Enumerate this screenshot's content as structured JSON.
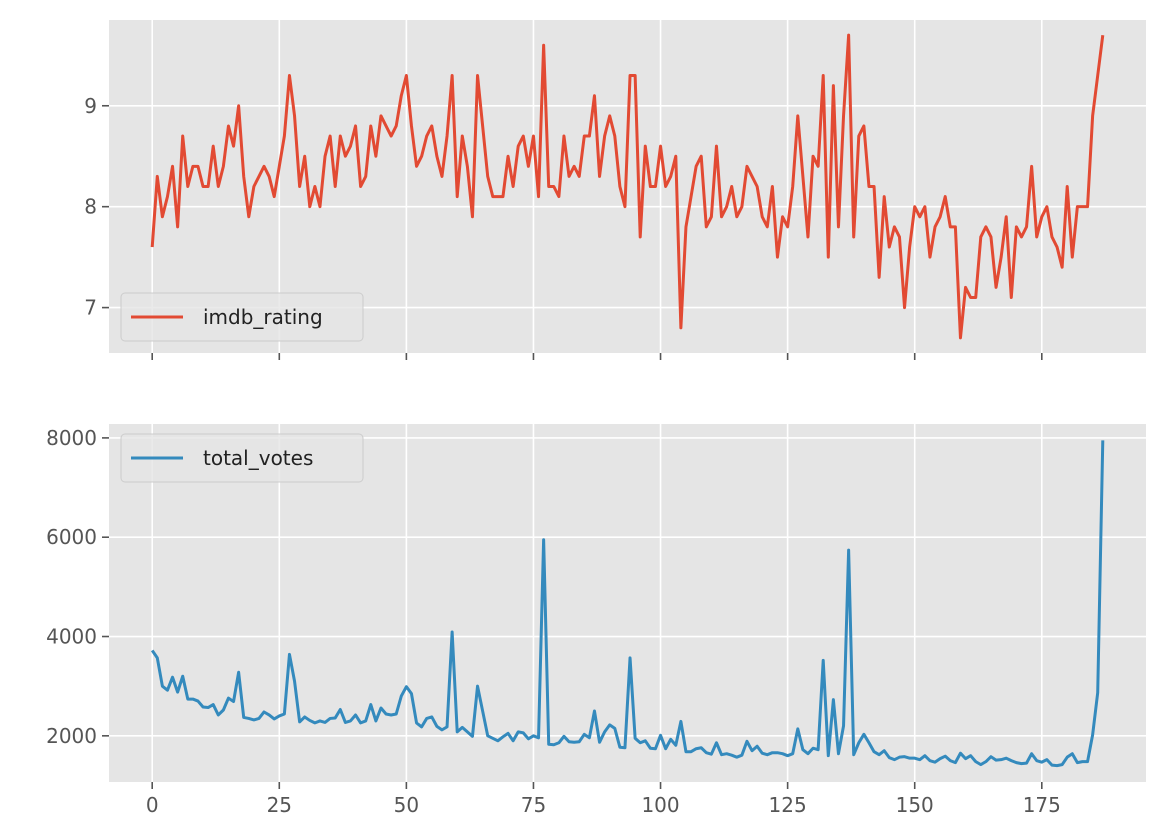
{
  "chart_data": [
    {
      "type": "line",
      "title": "",
      "xlabel": "",
      "ylabel": "",
      "xlim": [
        -8.5,
        195.5
      ],
      "ylim": [
        6.55,
        9.85
      ],
      "x_ticks": [
        0,
        25,
        50,
        75,
        100,
        125,
        150,
        175
      ],
      "x_tick_labels_visible": false,
      "y_ticks": [
        7,
        8,
        9
      ],
      "y_tick_labels": [
        "7",
        "8",
        "9"
      ],
      "grid": true,
      "legend": "lower-left",
      "series": [
        {
          "name": "imdb_rating",
          "color": "#e24a33",
          "x_start": 0,
          "values": [
            7.6,
            8.3,
            7.9,
            8.1,
            8.4,
            7.8,
            8.7,
            8.2,
            8.4,
            8.4,
            8.2,
            8.2,
            8.6,
            8.2,
            8.4,
            8.8,
            8.6,
            9.0,
            8.3,
            7.9,
            8.2,
            8.3,
            8.4,
            8.3,
            8.1,
            8.4,
            8.7,
            9.3,
            8.9,
            8.2,
            8.5,
            8.0,
            8.2,
            8.0,
            8.5,
            8.7,
            8.2,
            8.7,
            8.5,
            8.6,
            8.8,
            8.2,
            8.3,
            8.8,
            8.5,
            8.9,
            8.8,
            8.7,
            8.8,
            9.1,
            9.3,
            8.8,
            8.4,
            8.5,
            8.7,
            8.8,
            8.5,
            8.3,
            8.7,
            9.3,
            8.1,
            8.7,
            8.4,
            7.9,
            9.3,
            8.8,
            8.3,
            8.1,
            8.1,
            8.1,
            8.5,
            8.2,
            8.6,
            8.7,
            8.4,
            8.7,
            8.1,
            9.6,
            8.2,
            8.2,
            8.1,
            8.7,
            8.3,
            8.4,
            8.3,
            8.7,
            8.7,
            9.1,
            8.3,
            8.7,
            8.9,
            8.7,
            8.2,
            8.0,
            9.3,
            9.3,
            7.7,
            8.6,
            8.2,
            8.2,
            8.6,
            8.2,
            8.3,
            8.5,
            6.8,
            7.8,
            8.1,
            8.4,
            8.5,
            7.8,
            7.9,
            8.6,
            7.9,
            8.0,
            8.2,
            7.9,
            8.0,
            8.4,
            8.3,
            8.2,
            7.9,
            7.8,
            8.2,
            7.5,
            7.9,
            7.8,
            8.2,
            8.9,
            8.3,
            7.7,
            8.5,
            8.4,
            9.3,
            7.5,
            9.2,
            7.8,
            8.9,
            9.7,
            7.7,
            8.7,
            8.8,
            8.2,
            8.2,
            7.3,
            8.1,
            7.6,
            7.8,
            7.7,
            7.0,
            7.6,
            8.0,
            7.9,
            8.0,
            7.5,
            7.8,
            7.9,
            8.1,
            7.8,
            7.8,
            6.7,
            7.2,
            7.1,
            7.1,
            7.7,
            7.8,
            7.7,
            7.2,
            7.5,
            7.9,
            7.1,
            7.8,
            7.7,
            7.8,
            8.4,
            7.7,
            7.9,
            8.0,
            7.7,
            7.6,
            7.4,
            8.2,
            7.5,
            8.0,
            8.0,
            8.0,
            8.9,
            9.3,
            9.7
          ]
        }
      ]
    },
    {
      "type": "line",
      "title": "",
      "xlabel": "",
      "ylabel": "",
      "xlim": [
        -8.5,
        195.5
      ],
      "ylim": [
        1070,
        8280
      ],
      "x_ticks": [
        0,
        25,
        50,
        75,
        100,
        125,
        150,
        175
      ],
      "x_tick_labels": [
        "0",
        "25",
        "50",
        "75",
        "100",
        "125",
        "150",
        "175"
      ],
      "y_ticks": [
        2000,
        4000,
        6000,
        8000
      ],
      "y_tick_labels": [
        "2000",
        "4000",
        "6000",
        "8000"
      ],
      "grid": true,
      "legend": "upper-left",
      "series": [
        {
          "name": "total_votes",
          "color": "#348abd",
          "x_start": 0,
          "values": [
            3720,
            3570,
            3000,
            2920,
            3180,
            2880,
            3200,
            2740,
            2740,
            2700,
            2580,
            2570,
            2630,
            2420,
            2520,
            2760,
            2690,
            3280,
            2370,
            2350,
            2320,
            2350,
            2480,
            2420,
            2340,
            2400,
            2440,
            3640,
            3100,
            2280,
            2380,
            2310,
            2260,
            2300,
            2270,
            2350,
            2360,
            2530,
            2270,
            2300,
            2420,
            2260,
            2300,
            2630,
            2300,
            2560,
            2440,
            2420,
            2440,
            2800,
            2990,
            2850,
            2260,
            2180,
            2350,
            2380,
            2190,
            2120,
            2180,
            4090,
            2080,
            2170,
            2080,
            1990,
            3000,
            2500,
            2000,
            1950,
            1900,
            1980,
            2050,
            1900,
            2080,
            2060,
            1940,
            2000,
            1960,
            5950,
            1830,
            1820,
            1860,
            1990,
            1880,
            1870,
            1880,
            2030,
            1960,
            2500,
            1870,
            2080,
            2220,
            2150,
            1770,
            1760,
            3570,
            1950,
            1860,
            1900,
            1750,
            1740,
            2010,
            1740,
            1930,
            1810,
            2290,
            1680,
            1680,
            1740,
            1760,
            1660,
            1630,
            1860,
            1620,
            1640,
            1610,
            1570,
            1610,
            1890,
            1700,
            1790,
            1650,
            1620,
            1660,
            1660,
            1640,
            1600,
            1640,
            2140,
            1720,
            1640,
            1750,
            1720,
            3520,
            1600,
            2730,
            1640,
            2200,
            5740,
            1620,
            1860,
            2030,
            1860,
            1680,
            1620,
            1700,
            1560,
            1520,
            1570,
            1580,
            1550,
            1550,
            1520,
            1600,
            1500,
            1470,
            1540,
            1590,
            1500,
            1460,
            1650,
            1540,
            1600,
            1480,
            1420,
            1480,
            1580,
            1510,
            1520,
            1550,
            1500,
            1460,
            1440,
            1450,
            1640,
            1500,
            1470,
            1520,
            1410,
            1400,
            1420,
            1570,
            1640,
            1460,
            1480,
            1480,
            2020,
            2870,
            7950
          ]
        }
      ]
    }
  ]
}
